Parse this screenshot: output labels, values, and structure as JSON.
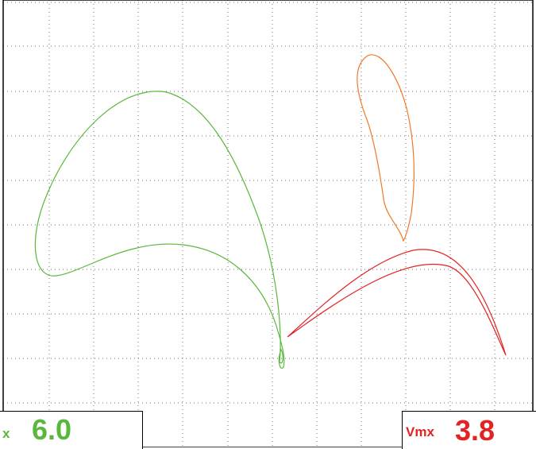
{
  "display": {
    "grid": true,
    "colors": {
      "background": "#ffffff",
      "grid": "#707070",
      "frame": "#000000",
      "trace_green": "#58b83c",
      "trace_orange": "#f07a28",
      "trace_red": "#e32222"
    },
    "traces": [
      {
        "name": "green-signal"
      },
      {
        "name": "orange-signal"
      },
      {
        "name": "red-signal"
      }
    ]
  },
  "readouts": {
    "left": {
      "label": "x",
      "value": "6.0",
      "color": "#58b83c"
    },
    "right": {
      "label": "Vmx",
      "value": "3.8",
      "color": "#e32222"
    }
  }
}
